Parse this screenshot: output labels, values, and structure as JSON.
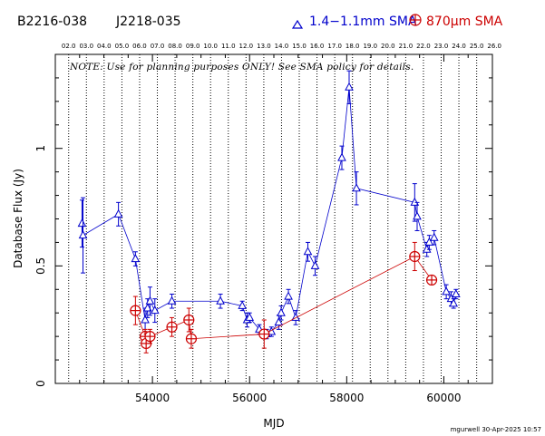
{
  "header": {
    "source_names": [
      "B2216-038",
      "J2218-035"
    ],
    "legend": [
      {
        "label": "1.4−1.1mm SMA",
        "color": "#0000cc",
        "marker": "triangle"
      },
      {
        "label": "870μm SMA",
        "color": "#cc0000",
        "marker": "circle-plus"
      }
    ]
  },
  "note": "NOTE: Use for planning purposes ONLY!  See SMA policy for details.",
  "footer": {
    "credit": "mgurwell 30-Apr-2025 10:57"
  },
  "chart_data": {
    "type": "scatter",
    "xlabel": "MJD",
    "ylabel": "Database Flux (Jy)",
    "xlim": [
      52000,
      61000
    ],
    "ylim": [
      0,
      1.4
    ],
    "x_ticks": [
      54000,
      56000,
      58000,
      60000
    ],
    "y_ticks": [
      0,
      0.5,
      1
    ],
    "y_tick_labels": [
      "0",
      "0.5",
      "1"
    ],
    "top_axis_year_labels": [
      "02.0",
      "03.0",
      "04.0",
      "05.0",
      "06.0",
      "07.0",
      "08.0",
      "09.0",
      "10.0",
      "11.0",
      "12.0",
      "13.0",
      "14.0",
      "15.0",
      "16.0",
      "17.0",
      "18.0",
      "19.0",
      "20.0",
      "21.0",
      "22.0",
      "23.0",
      "24.0",
      "25.0",
      "26.0"
    ],
    "year_mjd": [
      52275,
      52640,
      53005,
      53371,
      53736,
      54101,
      54466,
      54832,
      55197,
      55562,
      55927,
      56293,
      56658,
      57023,
      57388,
      57754,
      58119,
      58484,
      58849,
      59215,
      59580,
      59945,
      60310,
      60676,
      61041
    ],
    "grid": "vertical dotted at year boundaries",
    "series": [
      {
        "name": "1.4−1.1mm SMA",
        "color": "#0000cc",
        "marker": "triangle",
        "line": true,
        "points": [
          {
            "x": 52550,
            "y": 0.68,
            "err": 0.1
          },
          {
            "x": 52570,
            "y": 0.63,
            "err": 0.16
          },
          {
            "x": 53300,
            "y": 0.72,
            "err": 0.05
          },
          {
            "x": 53650,
            "y": 0.53,
            "err": 0.03
          },
          {
            "x": 53850,
            "y": 0.27,
            "err": 0.05
          },
          {
            "x": 53900,
            "y": 0.32,
            "err": 0.04
          },
          {
            "x": 53950,
            "y": 0.35,
            "err": 0.06
          },
          {
            "x": 54050,
            "y": 0.31,
            "err": 0.05
          },
          {
            "x": 54400,
            "y": 0.35,
            "err": 0.03
          },
          {
            "x": 55400,
            "y": 0.35,
            "err": 0.03
          },
          {
            "x": 55850,
            "y": 0.33,
            "err": 0.02
          },
          {
            "x": 55950,
            "y": 0.27,
            "err": 0.03
          },
          {
            "x": 56000,
            "y": 0.28,
            "err": 0.02
          },
          {
            "x": 56200,
            "y": 0.23,
            "err": 0.02
          },
          {
            "x": 56350,
            "y": 0.21,
            "err": 0.02
          },
          {
            "x": 56450,
            "y": 0.22,
            "err": 0.02
          },
          {
            "x": 56600,
            "y": 0.26,
            "err": 0.03
          },
          {
            "x": 56650,
            "y": 0.3,
            "err": 0.03
          },
          {
            "x": 56800,
            "y": 0.37,
            "err": 0.03
          },
          {
            "x": 56950,
            "y": 0.28,
            "err": 0.03
          },
          {
            "x": 57200,
            "y": 0.56,
            "err": 0.04
          },
          {
            "x": 57350,
            "y": 0.5,
            "err": 0.04
          },
          {
            "x": 57900,
            "y": 0.96,
            "err": 0.05
          },
          {
            "x": 58050,
            "y": 1.26,
            "err": 0.07
          },
          {
            "x": 58200,
            "y": 0.83,
            "err": 0.07
          },
          {
            "x": 59400,
            "y": 0.77,
            "err": 0.08
          },
          {
            "x": 59450,
            "y": 0.71,
            "err": 0.06
          },
          {
            "x": 59650,
            "y": 0.57,
            "err": 0.03
          },
          {
            "x": 59700,
            "y": 0.6,
            "err": 0.03
          },
          {
            "x": 59800,
            "y": 0.62,
            "err": 0.03
          },
          {
            "x": 60050,
            "y": 0.39,
            "err": 0.03
          },
          {
            "x": 60150,
            "y": 0.36,
            "err": 0.03
          },
          {
            "x": 60200,
            "y": 0.34,
            "err": 0.02
          },
          {
            "x": 60250,
            "y": 0.38,
            "err": 0.02
          }
        ]
      },
      {
        "name": "870μm SMA",
        "color": "#cc0000",
        "marker": "circle-plus",
        "line": true,
        "points": [
          {
            "x": 53650,
            "y": 0.31,
            "err": 0.06
          },
          {
            "x": 53850,
            "y": 0.2,
            "err": 0.03
          },
          {
            "x": 53870,
            "y": 0.17,
            "err": 0.04
          },
          {
            "x": 53950,
            "y": 0.2,
            "err": 0.03
          },
          {
            "x": 54400,
            "y": 0.24,
            "err": 0.04
          },
          {
            "x": 54750,
            "y": 0.27,
            "err": 0.05
          },
          {
            "x": 54800,
            "y": 0.19,
            "err": 0.04
          },
          {
            "x": 56300,
            "y": 0.21,
            "err": 0.06
          },
          {
            "x": 59400,
            "y": 0.54,
            "err": 0.06
          },
          {
            "x": 59750,
            "y": 0.44,
            "err": 0.02
          }
        ]
      }
    ]
  }
}
